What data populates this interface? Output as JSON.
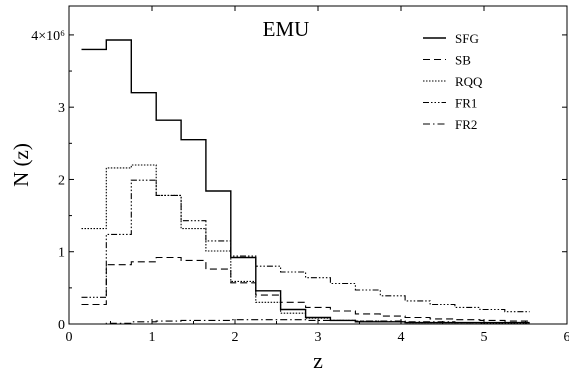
{
  "chart_data": {
    "type": "line",
    "title": "EMU",
    "xlabel": "z",
    "ylabel": "N (z)",
    "xlim": [
      0,
      6
    ],
    "ylim": [
      0,
      4.4
    ],
    "x_ticks": [
      "0",
      "1",
      "2",
      "3",
      "4",
      "5",
      "6"
    ],
    "y_ticks": [
      {
        "value": 0,
        "label": "0"
      },
      {
        "value": 1,
        "label": "1"
      },
      {
        "value": 2,
        "label": "2"
      },
      {
        "value": 3,
        "label": "3"
      },
      {
        "value": 4,
        "label": "4×10⁶"
      }
    ],
    "legend_position": "top-right",
    "grid": false,
    "bin_edges": [
      0.15,
      0.45,
      0.75,
      1.05,
      1.35,
      1.65,
      1.95,
      2.25,
      2.55,
      2.85,
      3.15,
      3.45,
      3.75,
      4.05,
      4.35,
      4.65,
      4.95,
      5.25,
      5.55
    ],
    "series": [
      {
        "name": "SFG",
        "dash": "",
        "values": [
          3.8,
          3.93,
          3.2,
          2.82,
          2.55,
          1.84,
          0.92,
          0.46,
          0.2,
          0.09,
          0.05,
          0.03,
          0.03,
          0.02,
          0.02,
          0.02,
          0.02,
          0.02
        ]
      },
      {
        "name": "SB",
        "dash": "7,4",
        "values": [
          0.27,
          0.82,
          0.86,
          0.92,
          0.88,
          0.76,
          0.57,
          0.4,
          0.3,
          0.23,
          0.18,
          0.14,
          0.11,
          0.09,
          0.07,
          0.06,
          0.05,
          0.04
        ]
      },
      {
        "name": "RQQ",
        "dash": "1.5,1.5",
        "values": [
          1.32,
          2.16,
          2.2,
          1.78,
          1.32,
          1.01,
          0.59,
          0.3,
          0.15,
          0.08,
          0.05,
          0.04,
          0.03,
          0.02,
          0.02,
          0.02,
          0.01,
          0.01
        ]
      },
      {
        "name": "FR1",
        "dash": "6,2,1.5,2,1.5,2,1.5,2",
        "values": [
          0.37,
          1.24,
          1.99,
          1.78,
          1.43,
          1.15,
          0.94,
          0.8,
          0.72,
          0.64,
          0.56,
          0.47,
          0.39,
          0.32,
          0.27,
          0.23,
          0.2,
          0.17
        ]
      },
      {
        "name": "FR2",
        "dash": "7,3,1.5,3",
        "values": [
          0.0,
          0.01,
          0.03,
          0.04,
          0.05,
          0.05,
          0.06,
          0.06,
          0.06,
          0.05,
          0.05,
          0.04,
          0.04,
          0.03,
          0.03,
          0.02,
          0.02,
          0.02
        ]
      }
    ]
  }
}
